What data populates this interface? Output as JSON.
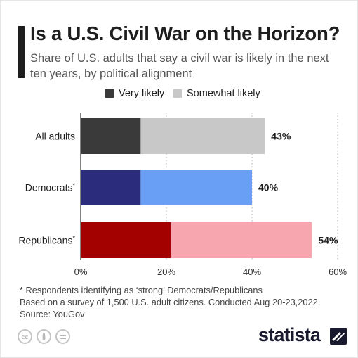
{
  "header": {
    "title": "Is a U.S. Civil War on the Horizon?",
    "subtitle": "Share of U.S. adults that say a civil war is likely in the next ten years, by political alignment"
  },
  "legend": [
    {
      "label": "Very likely",
      "color": "#3a3a3a"
    },
    {
      "label": "Somewhat likely",
      "color": "#c8c8c8"
    }
  ],
  "chart_data": {
    "type": "bar",
    "orientation": "horizontal",
    "stacked": true,
    "categories": [
      "All adults",
      "Democrats*",
      "Republicans*"
    ],
    "series": [
      {
        "name": "Very likely",
        "values": [
          14,
          14,
          21
        ]
      },
      {
        "name": "Somewhat likely",
        "values": [
          29,
          26,
          33
        ]
      }
    ],
    "totals": [
      43,
      40,
      54
    ],
    "total_labels": [
      "43%",
      "40%",
      "54%"
    ],
    "bar_colors": [
      {
        "very": "#3a3a3a",
        "somewhat": "#c8c8c8"
      },
      {
        "very": "#2b2d7c",
        "somewhat": "#6a9ff6"
      },
      {
        "very": "#a30000",
        "somewhat": "#f7a6af"
      }
    ],
    "xlim": [
      0,
      60
    ],
    "ticks": [
      0,
      20,
      40,
      60
    ],
    "tick_labels": [
      "0%",
      "20%",
      "40%",
      "60%"
    ],
    "grid": true,
    "legend_position": "top"
  },
  "notes": [
    "* Respondents identifying as ‘strong’ Democrats/Republicans",
    "Based on a survey of 1,500 U.S. adult citizens. Conducted Aug 20-23,2022.",
    "Source: YouGov"
  ],
  "license_icons": [
    "cc-icon",
    "attribution-icon",
    "no-derivatives-icon"
  ],
  "brand": {
    "name": "statista",
    "color": "#1a1a2e"
  }
}
